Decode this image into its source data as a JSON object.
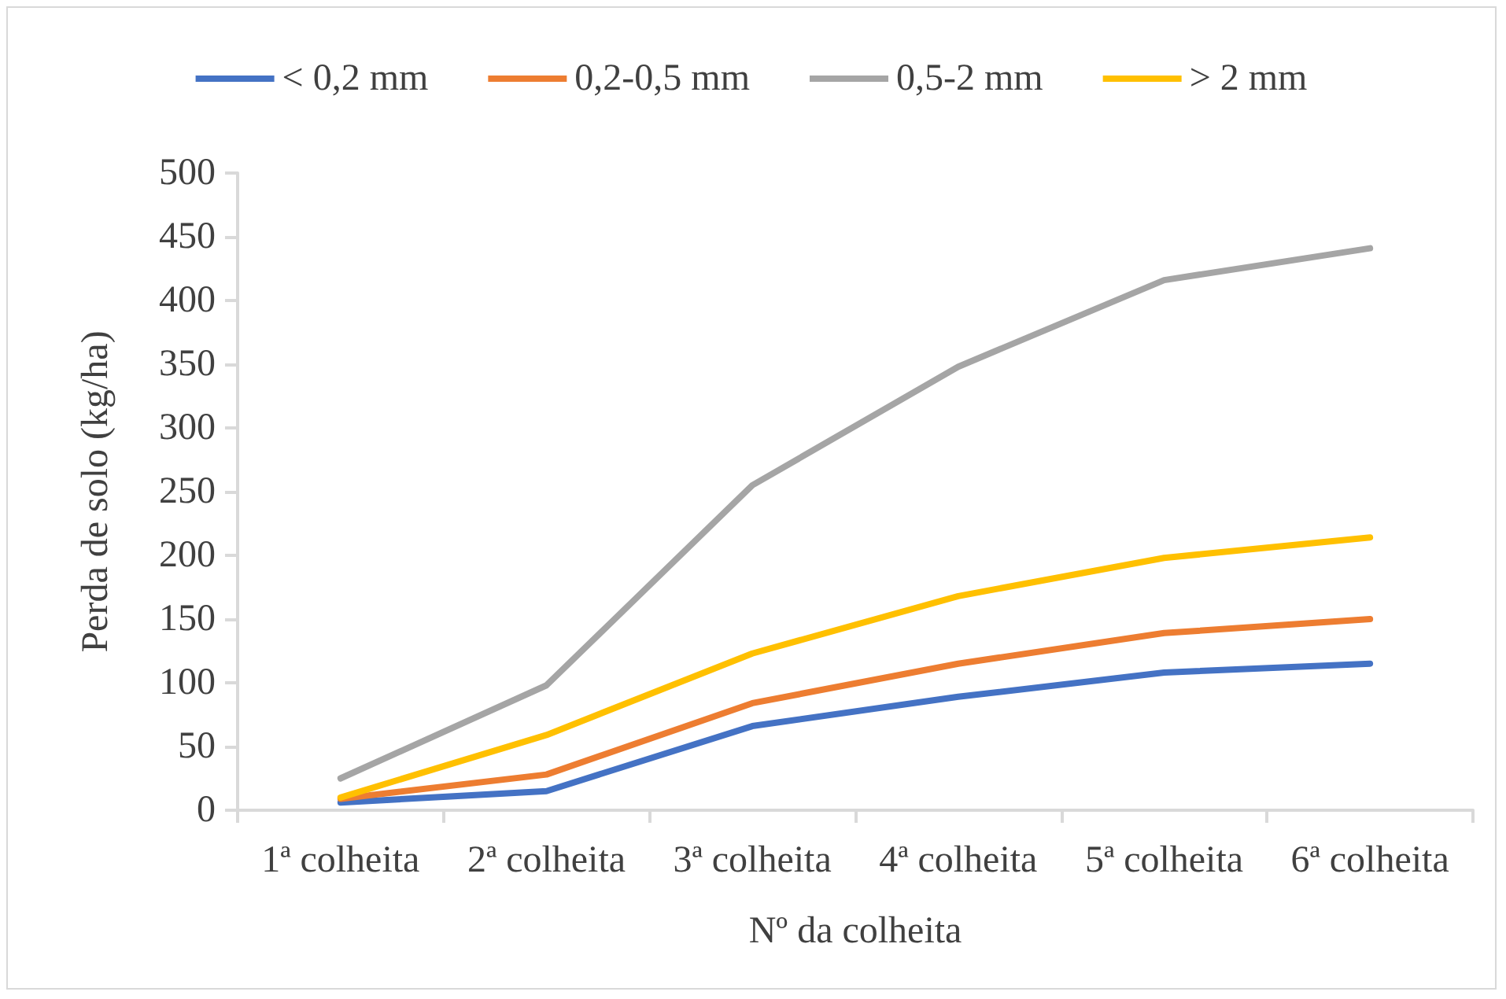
{
  "chart_data": {
    "type": "line",
    "xlabel": "Nº da colheita",
    "ylabel": "Perda de solo (kg/ha)",
    "categories": [
      "1ª colheita",
      "2ª colheita",
      "3ª colheita",
      "4ª colheita",
      "5ª colheita",
      "6ª colheita"
    ],
    "series": [
      {
        "name": "< 0,2 mm",
        "color": "#4472c4",
        "values": [
          6,
          15,
          66,
          89,
          108,
          115
        ]
      },
      {
        "name": "0,2-0,5 mm",
        "color": "#ed7d31",
        "values": [
          9,
          28,
          84,
          115,
          139,
          150
        ]
      },
      {
        "name": "0,5-2 mm",
        "color": "#a5a5a5",
        "values": [
          25,
          98,
          255,
          348,
          416,
          441
        ]
      },
      {
        "name": "> 2 mm",
        "color": "#ffc000",
        "values": [
          10,
          59,
          123,
          168,
          198,
          214
        ]
      }
    ],
    "ylim": [
      0,
      500
    ],
    "yticks": [
      0,
      50,
      100,
      150,
      200,
      250,
      300,
      350,
      400,
      450,
      500
    ],
    "grid": false,
    "legend": "top",
    "marker": "none",
    "line_style": "solid"
  }
}
